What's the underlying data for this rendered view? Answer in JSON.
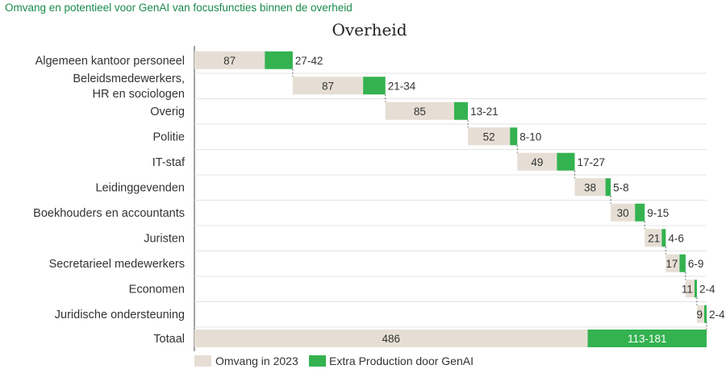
{
  "suptitle": "Omvang en potentieel voor GenAI van focusfuncties binnen de overheid",
  "chart_data": {
    "type": "bar",
    "subtype": "waterfall",
    "title": "Overheid",
    "colors": {
      "base": "#e6ded4",
      "extra": "#34b250"
    },
    "categories": [
      [
        "Algemeen kantoor personeel"
      ],
      [
        "Beleidsmedewerkers,",
        "HR en sociologen"
      ],
      [
        "Overig"
      ],
      [
        "Politie"
      ],
      [
        "IT-staf"
      ],
      [
        "Leidinggevenden"
      ],
      [
        "Boekhouders en accountants"
      ],
      [
        "Juristen"
      ],
      [
        "Secretarieel medewerkers"
      ],
      [
        "Economen"
      ],
      [
        "Juridische ondersteuning"
      ]
    ],
    "series": [
      {
        "name": "Omvang in 2023",
        "values": [
          87,
          87,
          85,
          52,
          49,
          38,
          30,
          21,
          17,
          11,
          9
        ]
      },
      {
        "name": "Extra Production door GenAI",
        "values": [
          34.5,
          27.5,
          17,
          9,
          22,
          6.5,
          12,
          5,
          7.5,
          3,
          3
        ],
        "range_labels": [
          "27-42",
          "21-34",
          "13-21",
          "8-10",
          "17-27",
          "5-8",
          "9-15",
          "4-6",
          "6-9",
          "2-4",
          "2-4"
        ]
      }
    ],
    "total": {
      "label": "Totaal",
      "base": 486,
      "extra_label": "113-181"
    },
    "legend_position": "bottom-left"
  }
}
